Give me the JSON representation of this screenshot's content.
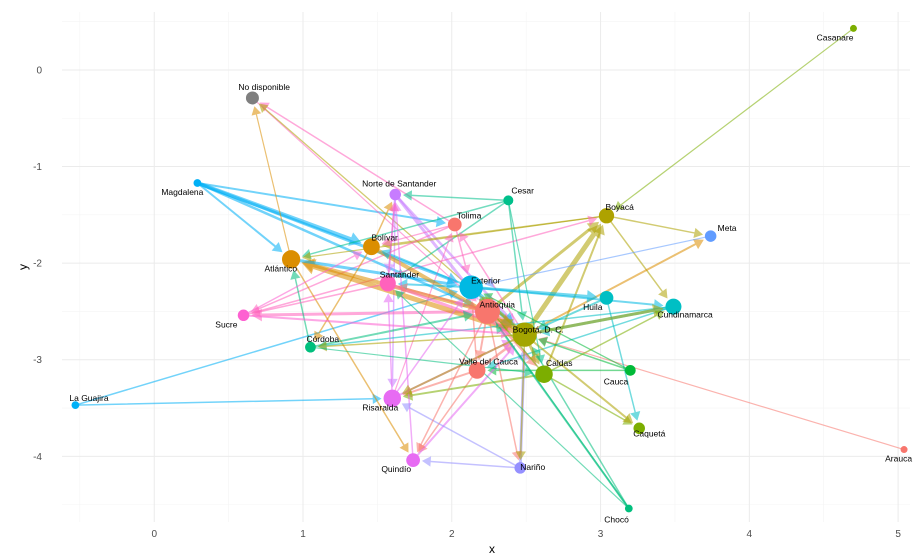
{
  "chart_data": {
    "type": "network",
    "xlabel": "x",
    "ylabel": "y",
    "xlim": [
      -0.62,
      5.08
    ],
    "ylim": [
      -4.68,
      0.6
    ],
    "x_ticks": [
      0,
      1,
      2,
      3,
      4,
      5
    ],
    "y_ticks": [
      0,
      -1,
      -2,
      -3,
      -4
    ],
    "grid": true,
    "nodes": [
      {
        "id": "Casanare",
        "x": 4.7,
        "y": 0.43,
        "size": 2,
        "color": "#7cae00"
      },
      {
        "id": "No disponible",
        "x": 0.66,
        "y": -0.29,
        "size": 6,
        "color": "#7f7f7f"
      },
      {
        "id": "Magdalena",
        "x": 0.29,
        "y": -1.17,
        "size": 2.5,
        "color": "#00b0f6"
      },
      {
        "id": "Norte de Santander",
        "x": 1.62,
        "y": -1.29,
        "size": 5,
        "color": "#c77cff"
      },
      {
        "id": "Cesar",
        "x": 2.38,
        "y": -1.35,
        "size": 4,
        "color": "#00c08b"
      },
      {
        "id": "Boyacá",
        "x": 3.04,
        "y": -1.51,
        "size": 7.5,
        "color": "#aea200"
      },
      {
        "id": "Tolima",
        "x": 2.02,
        "y": -1.6,
        "size": 6.5,
        "color": "#f8766d"
      },
      {
        "id": "Meta",
        "x": 3.74,
        "y": -1.72,
        "size": 5,
        "color": "#619cff"
      },
      {
        "id": "Bolívar",
        "x": 1.46,
        "y": -1.83,
        "size": 8.5,
        "color": "#db8e00"
      },
      {
        "id": "Atlántico",
        "x": 0.92,
        "y": -1.96,
        "size": 9.5,
        "color": "#db8e00"
      },
      {
        "id": "Santander",
        "x": 1.57,
        "y": -2.21,
        "size": 8,
        "color": "#ff62bc"
      },
      {
        "id": "Exterior",
        "x": 2.13,
        "y": -2.25,
        "size": 13,
        "color": "#00b9e3"
      },
      {
        "id": "Huila",
        "x": 3.04,
        "y": -2.36,
        "size": 6.5,
        "color": "#00bfc4"
      },
      {
        "id": "Cundinamarca",
        "x": 3.49,
        "y": -2.45,
        "size": 8,
        "color": "#00bfc4"
      },
      {
        "id": "Sucre",
        "x": 0.6,
        "y": -2.54,
        "size": 5,
        "color": "#fd61d1"
      },
      {
        "id": "Antioquia",
        "x": 2.24,
        "y": -2.5,
        "size": 14,
        "color": "#f8766d"
      },
      {
        "id": "Bogotá, D. C.",
        "x": 2.49,
        "y": -2.74,
        "size": 13.5,
        "color": "#a3a500"
      },
      {
        "id": "Córdoba",
        "x": 1.05,
        "y": -2.87,
        "size": 4.5,
        "color": "#00bf7d"
      },
      {
        "id": "Valle del Cauca",
        "x": 2.17,
        "y": -3.11,
        "size": 8.5,
        "color": "#f8766d"
      },
      {
        "id": "Caldas",
        "x": 2.62,
        "y": -3.15,
        "size": 9,
        "color": "#7cae00"
      },
      {
        "id": "Cauca",
        "x": 3.2,
        "y": -3.11,
        "size": 4.5,
        "color": "#00ba38"
      },
      {
        "id": "La Guajira",
        "x": -0.53,
        "y": -3.47,
        "size": 2.5,
        "color": "#00b0f6"
      },
      {
        "id": "Risaralda",
        "x": 1.6,
        "y": -3.4,
        "size": 9,
        "color": "#e76bf3"
      },
      {
        "id": "Caquetá",
        "x": 3.26,
        "y": -3.71,
        "size": 5,
        "color": "#7cae00"
      },
      {
        "id": "Quindío",
        "x": 1.74,
        "y": -4.04,
        "size": 6.5,
        "color": "#e76bf3"
      },
      {
        "id": "Nariño",
        "x": 2.46,
        "y": -4.12,
        "size": 5,
        "color": "#9590ff"
      },
      {
        "id": "Arauca",
        "x": 5.04,
        "y": -3.93,
        "size": 2,
        "color": "#f8766d"
      },
      {
        "id": "Chocó",
        "x": 3.19,
        "y": -4.54,
        "size": 2.5,
        "color": "#00bf7d"
      }
    ],
    "edges": [
      {
        "from": "Casanare",
        "to": "Boyacá",
        "weight": 1.2,
        "color": "#7cae00"
      },
      {
        "from": "Arauca",
        "to": "Bogotá, D. C.",
        "weight": 1.2,
        "color": "#f8766d"
      },
      {
        "from": "La Guajira",
        "to": "Risaralda",
        "weight": 1.5,
        "color": "#00b0f6"
      },
      {
        "from": "La Guajira",
        "to": "Exterior",
        "weight": 1.5,
        "color": "#00b0f6"
      },
      {
        "from": "Magdalena",
        "to": "Bolívar",
        "weight": 4,
        "color": "#00b0f6"
      },
      {
        "from": "Magdalena",
        "to": "Exterior",
        "weight": 3,
        "color": "#00b0f6"
      },
      {
        "from": "Magdalena",
        "to": "Tolima",
        "weight": 2,
        "color": "#00b0f6"
      },
      {
        "from": "Magdalena",
        "to": "Atlántico",
        "weight": 2,
        "color": "#00b0f6"
      },
      {
        "from": "Magdalena",
        "to": "Antioquia",
        "weight": 2.5,
        "color": "#00b0f6"
      },
      {
        "from": "No disponible",
        "to": "Antioquia",
        "weight": 1.2,
        "color": "#ff62bc"
      },
      {
        "from": "Tolima",
        "to": "No disponible",
        "weight": 1.5,
        "color": "#ff62bc"
      },
      {
        "from": "Bogotá, D. C.",
        "to": "No disponible",
        "weight": 1.3,
        "color": "#aea200"
      },
      {
        "from": "Atlántico",
        "to": "No disponible",
        "weight": 1.2,
        "color": "#db8e00"
      },
      {
        "from": "Norte de Santander",
        "to": "Antioquia",
        "weight": 3,
        "color": "#c77cff"
      },
      {
        "from": "Norte de Santander",
        "to": "Santander",
        "weight": 2,
        "color": "#c77cff"
      },
      {
        "from": "Norte de Santander",
        "to": "Bogotá, D. C.",
        "weight": 2.5,
        "color": "#c77cff"
      },
      {
        "from": "Norte de Santander",
        "to": "Risaralda",
        "weight": 1.5,
        "color": "#c77cff"
      },
      {
        "from": "Bolívar",
        "to": "Norte de Santander",
        "weight": 1.5,
        "color": "#db8e00"
      },
      {
        "from": "Cesar",
        "to": "Norte de Santander",
        "weight": 1.5,
        "color": "#00c08b"
      },
      {
        "from": "Cesar",
        "to": "Santander",
        "weight": 1.5,
        "color": "#00c08b"
      },
      {
        "from": "Cesar",
        "to": "Bogotá, D. C.",
        "weight": 1.5,
        "color": "#00c08b"
      },
      {
        "from": "Cesar",
        "to": "Atlántico",
        "weight": 1.5,
        "color": "#00c08b"
      },
      {
        "from": "Bogotá, D. C.",
        "to": "Boyacá",
        "weight": 5,
        "color": "#aea200"
      },
      {
        "from": "Antioquia",
        "to": "Boyacá",
        "weight": 3,
        "color": "#aea200"
      },
      {
        "from": "Caldas",
        "to": "Boyacá",
        "weight": 2,
        "color": "#aea200"
      },
      {
        "from": "Boyacá",
        "to": "Meta",
        "weight": 1.5,
        "color": "#aea200"
      },
      {
        "from": "Boyacá",
        "to": "Cundinamarca",
        "weight": 1.5,
        "color": "#aea200"
      },
      {
        "from": "Boyacá",
        "to": "Bolívar",
        "weight": 1.5,
        "color": "#aea200"
      },
      {
        "from": "Boyacá",
        "to": "Atlántico",
        "weight": 1.2,
        "color": "#aea200"
      },
      {
        "from": "Bogotá, D. C.",
        "to": "Tolima",
        "weight": 1.5,
        "color": "#ff62bc"
      },
      {
        "from": "Risaralda",
        "to": "Tolima",
        "weight": 1.2,
        "color": "#ff62bc"
      },
      {
        "from": "Tolima",
        "to": "Sucre",
        "weight": 1.5,
        "color": "#ff62bc"
      },
      {
        "from": "Sucre",
        "to": "Boyacá",
        "weight": 1.5,
        "color": "#ff62bc"
      },
      {
        "from": "Antioquia",
        "to": "Sucre",
        "weight": 3,
        "color": "#ff62bc"
      },
      {
        "from": "Bogotá, D. C.",
        "to": "Meta",
        "weight": 2,
        "color": "#db8e00"
      },
      {
        "from": "Bogotá, D. C.",
        "to": "Atlántico",
        "weight": 5,
        "color": "#db8e00"
      },
      {
        "from": "Antioquia",
        "to": "Atlántico",
        "weight": 4,
        "color": "#db8e00"
      },
      {
        "from": "Atlántico",
        "to": "Exterior",
        "weight": 3,
        "color": "#00b0f6"
      },
      {
        "from": "Atlántico",
        "to": "Quindío",
        "weight": 1.5,
        "color": "#db8e00"
      },
      {
        "from": "Bolívar",
        "to": "Bogotá, D. C.",
        "weight": 4,
        "color": "#db8e00"
      },
      {
        "from": "Bolívar",
        "to": "Córdoba",
        "weight": 1.5,
        "color": "#db8e00"
      },
      {
        "from": "Santander",
        "to": "Bogotá, D. C.",
        "weight": 3,
        "color": "#ff62bc"
      },
      {
        "from": "Exterior",
        "to": "Bogotá, D. C.",
        "weight": 4,
        "color": "#00b9e3"
      },
      {
        "from": "Exterior",
        "to": "Huila",
        "weight": 3,
        "color": "#00b9e3"
      },
      {
        "from": "Exterior",
        "to": "Santander",
        "weight": 2,
        "color": "#00b9e3"
      },
      {
        "from": "Exterior",
        "to": "Bolívar",
        "weight": 2,
        "color": "#00b9e3"
      },
      {
        "from": "Exterior",
        "to": "Cundinamarca",
        "weight": 2,
        "color": "#00b9e3"
      },
      {
        "from": "Cundinamarca",
        "to": "Bogotá, D. C.",
        "weight": 3,
        "color": "#00bfc4"
      },
      {
        "from": "Cundinamarca",
        "to": "Valle del Cauca",
        "weight": 1.5,
        "color": "#00bfc4"
      },
      {
        "from": "Cundinamarca",
        "to": "Córdoba",
        "weight": 1.5,
        "color": "#00bfc4"
      },
      {
        "from": "Huila",
        "to": "Bogotá, D. C.",
        "weight": 2,
        "color": "#00bfc4"
      },
      {
        "from": "Huila",
        "to": "Caquetá",
        "weight": 1.5,
        "color": "#00bfc4"
      },
      {
        "from": "Meta",
        "to": "Exterior",
        "weight": 1.2,
        "color": "#619cff"
      },
      {
        "from": "Córdoba",
        "to": "Antioquia",
        "weight": 2,
        "color": "#00bf7d"
      },
      {
        "from": "Córdoba",
        "to": "Atlántico",
        "weight": 1.5,
        "color": "#00bf7d"
      },
      {
        "from": "Valle del Cauca",
        "to": "Bogotá, D. C.",
        "weight": 2.5,
        "color": "#f8766d"
      },
      {
        "from": "Valle del Cauca",
        "to": "Risaralda",
        "weight": 2,
        "color": "#f8766d"
      },
      {
        "from": "Valle del Cauca",
        "to": "Quindío",
        "weight": 1.5,
        "color": "#f8766d"
      },
      {
        "from": "Caldas",
        "to": "Risaralda",
        "weight": 2,
        "color": "#7cae00"
      },
      {
        "from": "Caldas",
        "to": "Caquetá",
        "weight": 1.5,
        "color": "#7cae00"
      },
      {
        "from": "Cauca",
        "to": "Valle del Cauca",
        "weight": 1.5,
        "color": "#00ba38"
      },
      {
        "from": "Cauca",
        "to": "Bogotá, D. C.",
        "weight": 1.5,
        "color": "#00ba38"
      },
      {
        "from": "Cauca",
        "to": "Exterior",
        "weight": 1.3,
        "color": "#00ba38"
      },
      {
        "from": "Risaralda",
        "to": "Bogotá, D. C.",
        "weight": 2,
        "color": "#e76bf3"
      },
      {
        "from": "Risaralda",
        "to": "Santander",
        "weight": 1.5,
        "color": "#e76bf3"
      },
      {
        "from": "Quindío",
        "to": "Bogotá, D. C.",
        "weight": 2,
        "color": "#e76bf3"
      },
      {
        "from": "Quindío",
        "to": "Norte de Santander",
        "weight": 1.5,
        "color": "#e76bf3"
      },
      {
        "from": "Nariño",
        "to": "Bogotá, D. C.",
        "weight": 3,
        "color": "#9590ff"
      },
      {
        "from": "Nariño",
        "to": "Quindío",
        "weight": 1.5,
        "color": "#9590ff"
      },
      {
        "from": "Nariño",
        "to": "Risaralda",
        "weight": 1.5,
        "color": "#9590ff"
      },
      {
        "from": "Antioquia",
        "to": "Nariño",
        "weight": 1.5,
        "color": "#f8766d"
      },
      {
        "from": "Chocó",
        "to": "Antioquia",
        "weight": 2,
        "color": "#00bf7d"
      },
      {
        "from": "Chocó",
        "to": "Bogotá, D. C.",
        "weight": 1.5,
        "color": "#00bf7d"
      },
      {
        "from": "Chocó",
        "to": "Exterior",
        "weight": 1.5,
        "color": "#00bf7d"
      },
      {
        "from": "Antioquia",
        "to": "Bogotá, D. C.",
        "weight": 5,
        "color": "#f8766d"
      },
      {
        "from": "Bogotá, D. C.",
        "to": "Antioquia",
        "weight": 4,
        "color": "#aea200"
      },
      {
        "from": "Antioquia",
        "to": "Exterior",
        "weight": 4,
        "color": "#f8766d"
      },
      {
        "from": "Antioquia",
        "to": "Santander",
        "weight": 2,
        "color": "#f8766d"
      },
      {
        "from": "Antioquia",
        "to": "Caldas",
        "weight": 2.5,
        "color": "#f8766d"
      },
      {
        "from": "Antioquia",
        "to": "Valle del Cauca",
        "weight": 2,
        "color": "#f8766d"
      },
      {
        "from": "Antioquia",
        "to": "Quindío",
        "weight": 1.5,
        "color": "#f8766d"
      },
      {
        "from": "Bogotá, D. C.",
        "to": "Caldas",
        "weight": 3,
        "color": "#aea200"
      },
      {
        "from": "Bogotá, D. C.",
        "to": "Risaralda",
        "weight": 2,
        "color": "#aea200"
      },
      {
        "from": "Bogotá, D. C.",
        "to": "Caquetá",
        "weight": 2,
        "color": "#aea200"
      },
      {
        "from": "Bogotá, D. C.",
        "to": "Cundinamarca",
        "weight": 3,
        "color": "#aea200"
      },
      {
        "from": "Bogotá, D. C.",
        "to": "Exterior",
        "weight": 3,
        "color": "#aea200"
      },
      {
        "from": "Bogotá, D. C.",
        "to": "Nariño",
        "weight": 1.5,
        "color": "#aea200"
      },
      {
        "from": "Bogotá, D. C.",
        "to": "Córdoba",
        "weight": 1.5,
        "color": "#aea200"
      },
      {
        "from": "Sucre",
        "to": "Bogotá, D. C.",
        "weight": 2,
        "color": "#fd61d1"
      },
      {
        "from": "Sucre",
        "to": "Bolívar",
        "weight": 1.5,
        "color": "#fd61d1"
      },
      {
        "from": "Santander",
        "to": "Sucre",
        "weight": 1.5,
        "color": "#ff62bc"
      },
      {
        "from": "Caldas",
        "to": "Cundinamarca",
        "weight": 1.5,
        "color": "#7cae00"
      },
      {
        "from": "Caldas",
        "to": "Exterior",
        "weight": 1.5,
        "color": "#7cae00"
      },
      {
        "from": "Risaralda",
        "to": "Exterior",
        "weight": 1.5,
        "color": "#e76bf3"
      },
      {
        "from": "Valle del Cauca",
        "to": "Exterior",
        "weight": 1.5,
        "color": "#f8766d"
      },
      {
        "from": "Tolima",
        "to": "Exterior",
        "weight": 1.5,
        "color": "#ff62bc"
      },
      {
        "from": "Tolima",
        "to": "Bolívar",
        "weight": 1.2,
        "color": "#ff62bc"
      },
      {
        "from": "Santander",
        "to": "Norte de Santander",
        "weight": 1.5,
        "color": "#ff62bc"
      },
      {
        "from": "Cesar",
        "to": "Caldas",
        "weight": 1.2,
        "color": "#00c08b"
      },
      {
        "from": "Córdoba",
        "to": "Caldas",
        "weight": 1.2,
        "color": "#00bf7d"
      },
      {
        "from": "Chocó",
        "to": "Santander",
        "weight": 1.2,
        "color": "#00bf7d"
      }
    ]
  }
}
